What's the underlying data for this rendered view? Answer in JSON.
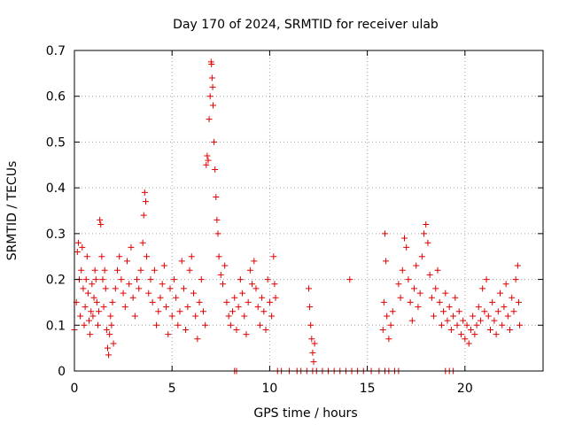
{
  "chart_data": {
    "type": "scatter",
    "title": "Day 170 of 2024, SRMTID for receiver ulab",
    "xlabel": "GPS time / hours",
    "ylabel": "SRMTID / TECUs",
    "xlim": [
      0,
      24
    ],
    "ylim": [
      0,
      0.7
    ],
    "xticks": [
      0,
      5,
      10,
      15,
      20
    ],
    "xtick_labels": [
      "0",
      "5",
      "10",
      "15",
      "20"
    ],
    "yticks": [
      0,
      0.1,
      0.2,
      0.3,
      0.4,
      0.5,
      0.6,
      0.7
    ],
    "ytick_labels": [
      "0",
      "0.1",
      "0.2",
      "0.3",
      "0.4",
      "0.5",
      "0.6",
      "0.7"
    ],
    "grid": true,
    "marker": "+",
    "series": [
      {
        "name": "SRMTID",
        "color": "#e00000",
        "points": [
          [
            0.0,
            0.09
          ],
          [
            0.1,
            0.15
          ],
          [
            0.15,
            0.26
          ],
          [
            0.2,
            0.28
          ],
          [
            0.25,
            0.2
          ],
          [
            0.3,
            0.12
          ],
          [
            0.35,
            0.22
          ],
          [
            0.4,
            0.27
          ],
          [
            0.45,
            0.18
          ],
          [
            0.5,
            0.1
          ],
          [
            0.55,
            0.14
          ],
          [
            0.6,
            0.2
          ],
          [
            0.65,
            0.25
          ],
          [
            0.7,
            0.17
          ],
          [
            0.75,
            0.11
          ],
          [
            0.8,
            0.08
          ],
          [
            0.85,
            0.13
          ],
          [
            0.9,
            0.19
          ],
          [
            0.95,
            0.12
          ],
          [
            1.0,
            0.16
          ],
          [
            1.05,
            0.22
          ],
          [
            1.1,
            0.2
          ],
          [
            1.15,
            0.15
          ],
          [
            1.2,
            0.1
          ],
          [
            1.25,
            0.13
          ],
          [
            1.3,
            0.33
          ],
          [
            1.35,
            0.32
          ],
          [
            1.4,
            0.25
          ],
          [
            1.45,
            0.2
          ],
          [
            1.5,
            0.14
          ],
          [
            1.55,
            0.22
          ],
          [
            1.6,
            0.18
          ],
          [
            1.65,
            0.09
          ],
          [
            1.7,
            0.05
          ],
          [
            1.75,
            0.035
          ],
          [
            1.8,
            0.08
          ],
          [
            1.85,
            0.12
          ],
          [
            1.9,
            0.1
          ],
          [
            1.95,
            0.15
          ],
          [
            2.0,
            0.06
          ],
          [
            2.1,
            0.18
          ],
          [
            2.2,
            0.22
          ],
          [
            2.3,
            0.25
          ],
          [
            2.4,
            0.2
          ],
          [
            2.5,
            0.17
          ],
          [
            2.6,
            0.14
          ],
          [
            2.7,
            0.24
          ],
          [
            2.8,
            0.19
          ],
          [
            2.9,
            0.27
          ],
          [
            3.0,
            0.16
          ],
          [
            3.1,
            0.12
          ],
          [
            3.2,
            0.2
          ],
          [
            3.3,
            0.18
          ],
          [
            3.4,
            0.22
          ],
          [
            3.5,
            0.28
          ],
          [
            3.55,
            0.34
          ],
          [
            3.6,
            0.39
          ],
          [
            3.65,
            0.37
          ],
          [
            3.7,
            0.25
          ],
          [
            3.8,
            0.17
          ],
          [
            3.9,
            0.2
          ],
          [
            4.0,
            0.15
          ],
          [
            4.1,
            0.22
          ],
          [
            4.2,
            0.1
          ],
          [
            4.3,
            0.13
          ],
          [
            4.4,
            0.16
          ],
          [
            4.5,
            0.19
          ],
          [
            4.6,
            0.23
          ],
          [
            4.7,
            0.14
          ],
          [
            4.8,
            0.08
          ],
          [
            4.9,
            0.18
          ],
          [
            5.0,
            0.12
          ],
          [
            5.1,
            0.2
          ],
          [
            5.2,
            0.16
          ],
          [
            5.3,
            0.1
          ],
          [
            5.4,
            0.13
          ],
          [
            5.5,
            0.24
          ],
          [
            5.6,
            0.18
          ],
          [
            5.7,
            0.09
          ],
          [
            5.8,
            0.14
          ],
          [
            5.9,
            0.22
          ],
          [
            6.0,
            0.25
          ],
          [
            6.1,
            0.17
          ],
          [
            6.2,
            0.12
          ],
          [
            6.3,
            0.07
          ],
          [
            6.4,
            0.15
          ],
          [
            6.5,
            0.2
          ],
          [
            6.6,
            0.13
          ],
          [
            6.7,
            0.1
          ],
          [
            6.75,
            0.45
          ],
          [
            6.8,
            0.47
          ],
          [
            6.85,
            0.46
          ],
          [
            6.9,
            0.55
          ],
          [
            6.95,
            0.6
          ],
          [
            7.0,
            0.675
          ],
          [
            7.02,
            0.67
          ],
          [
            7.05,
            0.64
          ],
          [
            7.08,
            0.62
          ],
          [
            7.1,
            0.58
          ],
          [
            7.15,
            0.5
          ],
          [
            7.2,
            0.44
          ],
          [
            7.25,
            0.38
          ],
          [
            7.3,
            0.33
          ],
          [
            7.35,
            0.3
          ],
          [
            7.4,
            0.25
          ],
          [
            7.5,
            0.21
          ],
          [
            7.6,
            0.19
          ],
          [
            7.7,
            0.23
          ],
          [
            7.8,
            0.15
          ],
          [
            7.9,
            0.12
          ],
          [
            8.0,
            0.1
          ],
          [
            8.1,
            0.13
          ],
          [
            8.2,
            0.16
          ],
          [
            8.3,
            0.09
          ],
          [
            8.4,
            0.14
          ],
          [
            8.5,
            0.2
          ],
          [
            8.6,
            0.17
          ],
          [
            8.7,
            0.12
          ],
          [
            8.8,
            0.08
          ],
          [
            8.9,
            0.15
          ],
          [
            9.0,
            0.22
          ],
          [
            9.1,
            0.19
          ],
          [
            9.2,
            0.24
          ],
          [
            9.3,
            0.18
          ],
          [
            9.4,
            0.14
          ],
          [
            9.5,
            0.1
          ],
          [
            9.6,
            0.16
          ],
          [
            9.7,
            0.13
          ],
          [
            9.8,
            0.09
          ],
          [
            9.9,
            0.2
          ],
          [
            10.0,
            0.15
          ],
          [
            10.1,
            0.12
          ],
          [
            10.2,
            0.25
          ],
          [
            10.25,
            0.19
          ],
          [
            10.3,
            0.16
          ],
          [
            12.0,
            0.18
          ],
          [
            12.05,
            0.14
          ],
          [
            12.1,
            0.1
          ],
          [
            12.15,
            0.07
          ],
          [
            12.2,
            0.04
          ],
          [
            12.25,
            0.02
          ],
          [
            12.3,
            0.06
          ],
          [
            14.1,
            0.2
          ],
          [
            15.8,
            0.09
          ],
          [
            15.85,
            0.15
          ],
          [
            15.9,
            0.3
          ],
          [
            15.95,
            0.24
          ],
          [
            16.0,
            0.12
          ],
          [
            16.1,
            0.07
          ],
          [
            16.2,
            0.1
          ],
          [
            16.3,
            0.13
          ],
          [
            16.6,
            0.19
          ],
          [
            16.7,
            0.16
          ],
          [
            16.8,
            0.22
          ],
          [
            16.9,
            0.29
          ],
          [
            17.0,
            0.27
          ],
          [
            17.1,
            0.2
          ],
          [
            17.2,
            0.15
          ],
          [
            17.3,
            0.11
          ],
          [
            17.4,
            0.18
          ],
          [
            17.5,
            0.23
          ],
          [
            17.6,
            0.14
          ],
          [
            17.7,
            0.17
          ],
          [
            17.8,
            0.25
          ],
          [
            17.9,
            0.3
          ],
          [
            18.0,
            0.32
          ],
          [
            18.1,
            0.28
          ],
          [
            18.2,
            0.21
          ],
          [
            18.3,
            0.16
          ],
          [
            18.4,
            0.12
          ],
          [
            18.5,
            0.18
          ],
          [
            18.6,
            0.22
          ],
          [
            18.7,
            0.15
          ],
          [
            18.8,
            0.1
          ],
          [
            18.9,
            0.13
          ],
          [
            19.0,
            0.17
          ],
          [
            19.1,
            0.11
          ],
          [
            19.2,
            0.14
          ],
          [
            19.3,
            0.09
          ],
          [
            19.4,
            0.12
          ],
          [
            19.5,
            0.16
          ],
          [
            19.6,
            0.1
          ],
          [
            19.7,
            0.13
          ],
          [
            19.8,
            0.08
          ],
          [
            19.9,
            0.11
          ],
          [
            20.0,
            0.07
          ],
          [
            20.1,
            0.1
          ],
          [
            20.2,
            0.06
          ],
          [
            20.3,
            0.09
          ],
          [
            20.4,
            0.12
          ],
          [
            20.5,
            0.08
          ],
          [
            20.6,
            0.1
          ],
          [
            20.7,
            0.14
          ],
          [
            20.8,
            0.11
          ],
          [
            20.9,
            0.18
          ],
          [
            21.0,
            0.13
          ],
          [
            21.1,
            0.2
          ],
          [
            21.2,
            0.12
          ],
          [
            21.3,
            0.09
          ],
          [
            21.4,
            0.15
          ],
          [
            21.5,
            0.11
          ],
          [
            21.6,
            0.08
          ],
          [
            21.7,
            0.13
          ],
          [
            21.8,
            0.17
          ],
          [
            21.9,
            0.1
          ],
          [
            22.0,
            0.14
          ],
          [
            22.1,
            0.19
          ],
          [
            22.2,
            0.12
          ],
          [
            22.3,
            0.09
          ],
          [
            22.4,
            0.16
          ],
          [
            22.5,
            0.13
          ],
          [
            22.6,
            0.2
          ],
          [
            22.7,
            0.23
          ],
          [
            22.75,
            0.15
          ],
          [
            22.8,
            0.1
          ]
        ],
        "zero_values_x": [
          8.2,
          8.3,
          10.4,
          10.6,
          11.0,
          11.4,
          11.6,
          11.9,
          12.2,
          12.4,
          12.7,
          13.0,
          13.3,
          13.6,
          13.9,
          14.2,
          14.5,
          14.8,
          15.2,
          15.6,
          15.9,
          16.1,
          16.4,
          16.6,
          19.0,
          19.2,
          19.4
        ]
      }
    ]
  }
}
